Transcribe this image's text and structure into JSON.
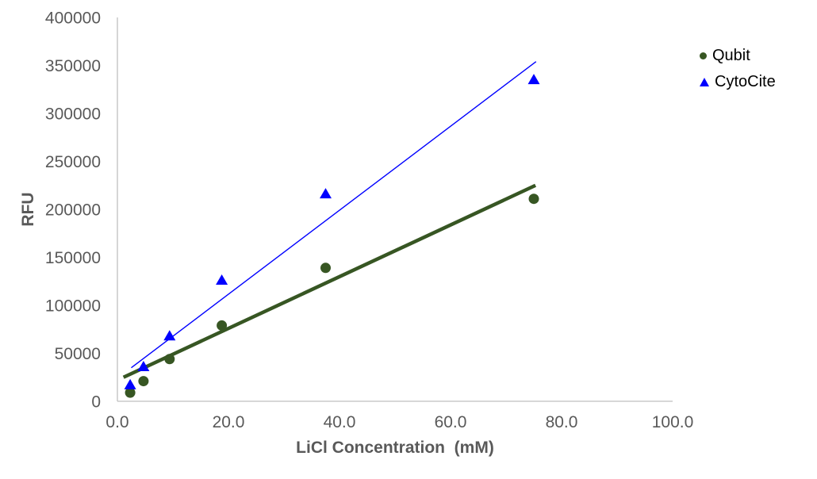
{
  "chart_data": {
    "type": "scatter",
    "title": "",
    "xlabel": "LiCl Concentration  (mM)",
    "ylabel": "RFU",
    "xlim": [
      0,
      100
    ],
    "ylim": [
      0,
      400000
    ],
    "grid": false,
    "legend_position": "top-right",
    "x_ticks": [
      "0.0",
      "20.0",
      "40.0",
      "60.0",
      "80.0",
      "100.0"
    ],
    "x_tick_values": [
      0,
      20,
      40,
      60,
      80,
      100
    ],
    "y_ticks": [
      "0",
      "50000",
      "100000",
      "150000",
      "200000",
      "250000",
      "300000",
      "350000",
      "400000"
    ],
    "y_tick_values": [
      0,
      50000,
      100000,
      150000,
      200000,
      250000,
      300000,
      350000,
      400000
    ],
    "series": [
      {
        "name": "Qubit",
        "marker": "circle",
        "color": "#375623",
        "x": [
          2.3,
          4.7,
          9.4,
          18.8,
          37.5,
          75.0
        ],
        "y": [
          9000,
          21000,
          44000,
          79000,
          139000,
          211000
        ],
        "trendline": {
          "x1": 1.1,
          "y1": 25000,
          "x2": 75.3,
          "y2": 225000,
          "width": 4.5
        }
      },
      {
        "name": "CytoCite",
        "marker": "triangle",
        "color": "#0000FF",
        "x": [
          2.3,
          4.7,
          9.4,
          18.8,
          37.5,
          75.0
        ],
        "y": [
          17000,
          36000,
          68000,
          126000,
          216000,
          335000
        ],
        "trendline": {
          "x1": 2.5,
          "y1": 35000,
          "x2": 75.4,
          "y2": 354000,
          "width": 1.4
        }
      }
    ],
    "colors": {
      "axis_line": "#BFBFBF",
      "tick_text": "#595959",
      "legend_text": "#000000",
      "background": "#FFFFFF"
    }
  }
}
